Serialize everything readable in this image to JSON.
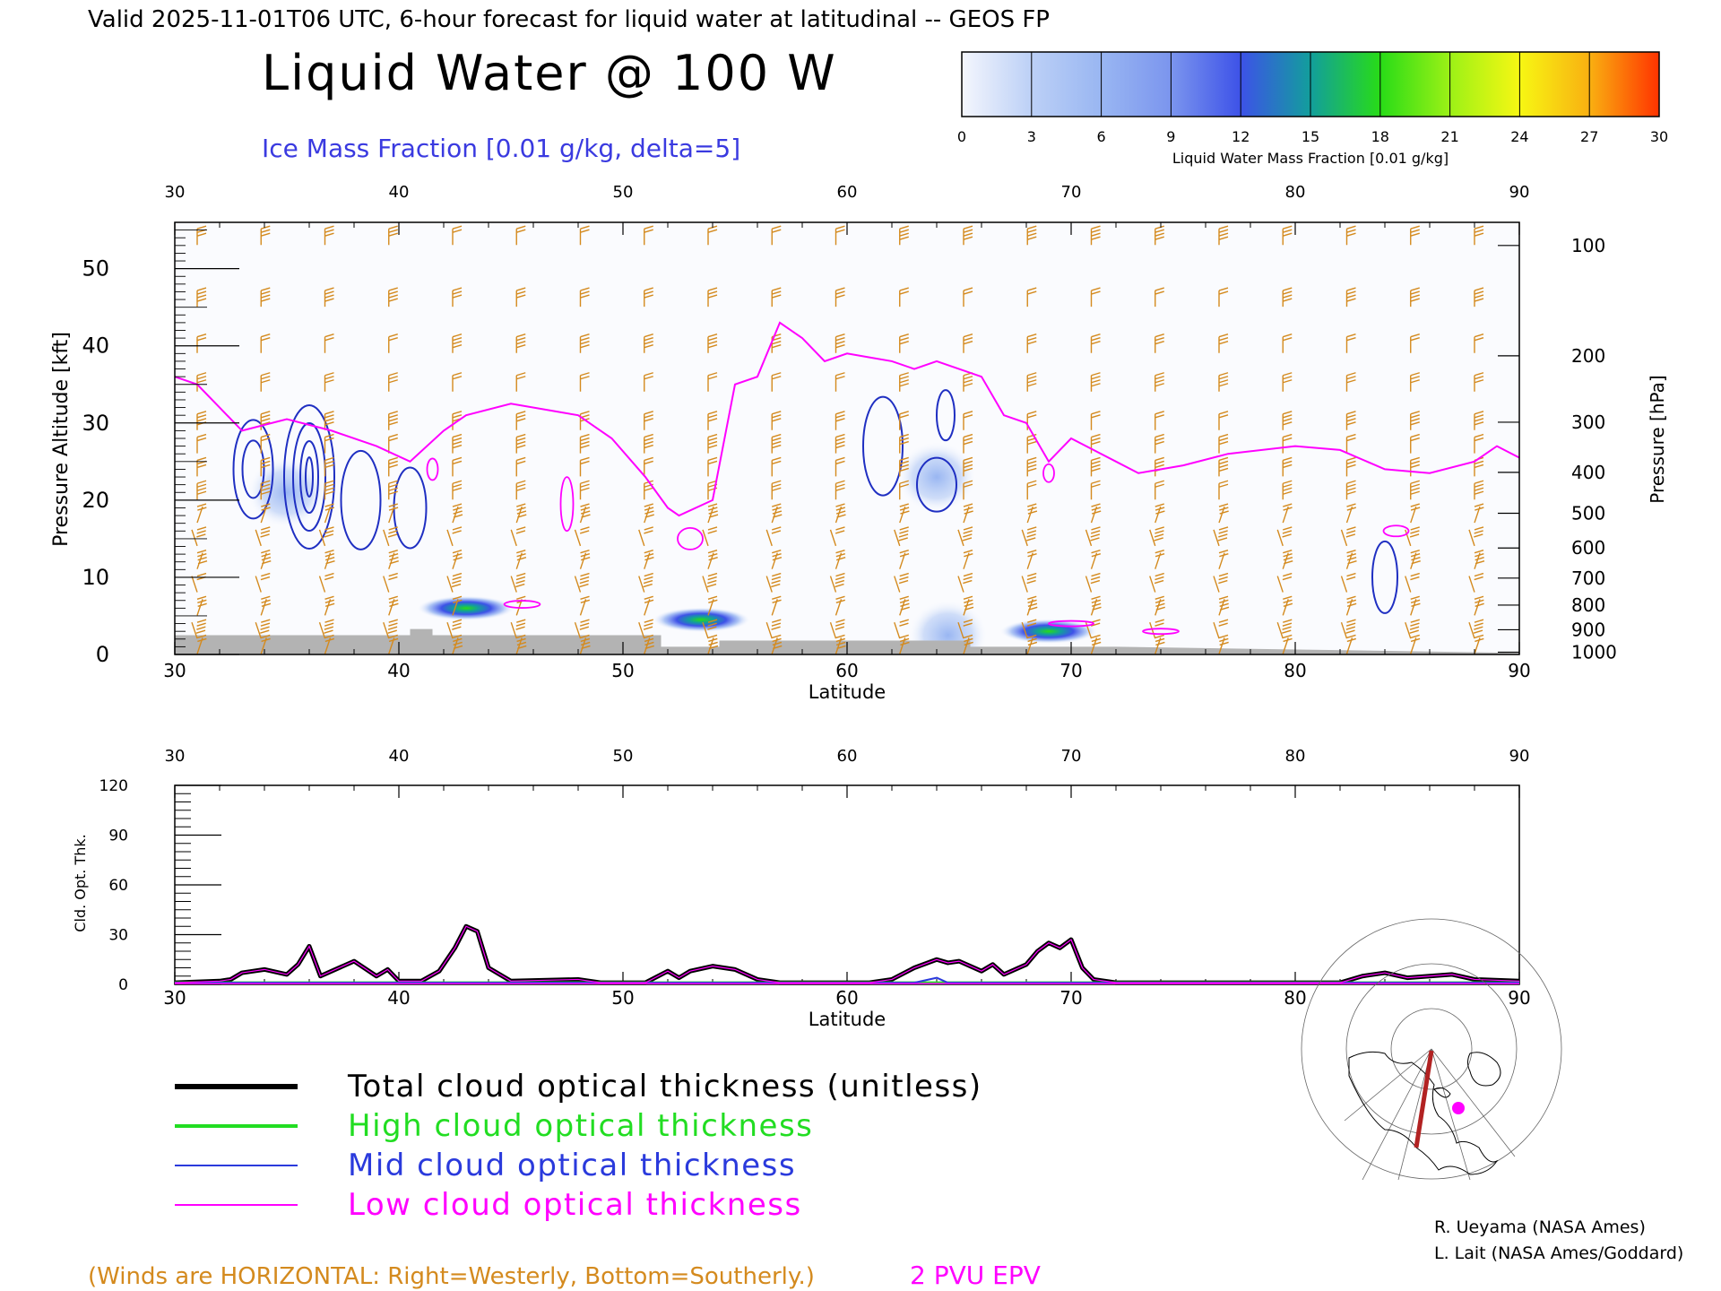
{
  "header": {
    "valid_line": "Valid 2025-11-01T06 UTC, 6-hour forecast for liquid water at latitudinal -- GEOS FP",
    "title": "Liquid Water @ 100 W",
    "subtitle": "Ice Mass Fraction [0.01 g/kg, delta=5]"
  },
  "colorbar": {
    "label": "Liquid Water Mass Fraction [0.01 g/kg]",
    "ticks": [
      "0",
      "3",
      "6",
      "9",
      "12",
      "15",
      "18",
      "21",
      "24",
      "27",
      "30"
    ],
    "colors": [
      "#f4f6fd",
      "#bcd0f6",
      "#99b6f2",
      "#7b95ee",
      "#3d52e8",
      "#129e9c",
      "#28dc17",
      "#9cf116",
      "#f7f713",
      "#f9b011",
      "#ff3300"
    ]
  },
  "colors": {
    "wind_barb": "#d48a1e",
    "epv": "#ff00ff",
    "ice_contour": "#1f2fc2",
    "terrain": "#b3b3b3"
  },
  "chart_data": [
    {
      "type": "heatmap",
      "name": "liquid-water-cross-section",
      "xlabel": "Latitude",
      "ylabel": "Pressure Altitude [kft]",
      "y2label": "Pressure [hPa]",
      "xlim": [
        30,
        90
      ],
      "ylim": [
        0,
        56
      ],
      "xticks": [
        "30",
        "40",
        "50",
        "60",
        "70",
        "80",
        "90"
      ],
      "yticks": [
        "0",
        "10",
        "20",
        "30",
        "40",
        "50"
      ],
      "pressure_ticks": [
        {
          "label": "100",
          "kft": 53
        },
        {
          "label": "200",
          "kft": 38.7
        },
        {
          "label": "300",
          "kft": 30.1
        },
        {
          "label": "400",
          "kft": 23.6
        },
        {
          "label": "500",
          "kft": 18.3
        },
        {
          "label": "600",
          "kft": 13.8
        },
        {
          "label": "700",
          "kft": 9.9
        },
        {
          "label": "800",
          "kft": 6.4
        },
        {
          "label": "900",
          "kft": 3.2
        },
        {
          "label": "1000",
          "kft": 0.3
        }
      ],
      "liquid_water_maxima": [
        {
          "lat": 43.0,
          "kft": 6.0,
          "value": 16
        },
        {
          "lat": 53.5,
          "kft": 4.5,
          "value": 14
        },
        {
          "lat": 69.0,
          "kft": 3.0,
          "value": 15
        },
        {
          "lat": 64.5,
          "kft": 2.5,
          "value": 9
        },
        {
          "lat": 35.0,
          "kft": 21.0,
          "value": 3
        },
        {
          "lat": 64.0,
          "kft": 23.0,
          "value": 3
        }
      ],
      "epv_2pvu_kft": [
        [
          30,
          36
        ],
        [
          31,
          35
        ],
        [
          32,
          32
        ],
        [
          33,
          29
        ],
        [
          35,
          30.5
        ],
        [
          37,
          29
        ],
        [
          39,
          27
        ],
        [
          40.5,
          25
        ],
        [
          42,
          29
        ],
        [
          43,
          31
        ],
        [
          45,
          32.5
        ],
        [
          47,
          31.5
        ],
        [
          48,
          31
        ],
        [
          49.5,
          28
        ],
        [
          51,
          23
        ],
        [
          52,
          19
        ],
        [
          52.5,
          18
        ],
        [
          54,
          20
        ],
        [
          55,
          35
        ],
        [
          56,
          36
        ],
        [
          57,
          43
        ],
        [
          58,
          41
        ],
        [
          59,
          38
        ],
        [
          60,
          39
        ],
        [
          61,
          38.5
        ],
        [
          62,
          38
        ],
        [
          63,
          37
        ],
        [
          64,
          38
        ],
        [
          65,
          37
        ],
        [
          66,
          36
        ],
        [
          67,
          31
        ],
        [
          68,
          30
        ],
        [
          69,
          25
        ],
        [
          70,
          28
        ],
        [
          72,
          25
        ],
        [
          73,
          23.5
        ],
        [
          75,
          24.5
        ],
        [
          77,
          26
        ],
        [
          80,
          27
        ],
        [
          82,
          26.5
        ],
        [
          84,
          24
        ],
        [
          86,
          23.5
        ],
        [
          88,
          25
        ],
        [
          89,
          27
        ],
        [
          90,
          25.5
        ]
      ],
      "terrain_kft": [
        [
          30,
          2.5
        ],
        [
          40.5,
          2.5
        ],
        [
          40.5,
          3.3
        ],
        [
          41.5,
          3.3
        ],
        [
          41.5,
          2.5
        ],
        [
          51.7,
          2.5
        ],
        [
          51.7,
          1.0
        ],
        [
          54.3,
          1.0
        ],
        [
          54.3,
          1.8
        ],
        [
          65.5,
          1.8
        ],
        [
          65.5,
          1.0
        ],
        [
          72,
          1.0
        ],
        [
          90,
          0.2
        ]
      ]
    },
    {
      "type": "line",
      "name": "cloud-optical-thickness",
      "xlabel": "Latitude",
      "ylabel": "Cld. Opt. Thk.",
      "xlim": [
        30,
        90
      ],
      "ylim": [
        0,
        120
      ],
      "xticks": [
        "30",
        "40",
        "50",
        "60",
        "70",
        "80",
        "90"
      ],
      "yticks": [
        "0",
        "30",
        "60",
        "90",
        "120"
      ],
      "series": [
        {
          "name": "Total cloud optical thickness (unitless)",
          "color": "#000000",
          "points": [
            [
              30,
              1
            ],
            [
              32,
              2
            ],
            [
              32.5,
              3
            ],
            [
              33,
              7
            ],
            [
              34,
              9
            ],
            [
              35,
              6
            ],
            [
              35.5,
              12
            ],
            [
              36,
              23
            ],
            [
              36.5,
              5
            ],
            [
              37,
              8
            ],
            [
              38,
              14
            ],
            [
              39,
              5
            ],
            [
              39.5,
              9
            ],
            [
              40,
              2
            ],
            [
              41,
              2
            ],
            [
              41.8,
              8
            ],
            [
              42.5,
              22
            ],
            [
              43,
              35
            ],
            [
              43.5,
              32
            ],
            [
              44,
              10
            ],
            [
              45,
              2
            ],
            [
              48,
              3
            ],
            [
              49,
              1
            ],
            [
              51,
              1
            ],
            [
              52,
              8
            ],
            [
              52.5,
              4
            ],
            [
              53,
              8
            ],
            [
              54,
              11
            ],
            [
              55,
              9
            ],
            [
              56,
              3
            ],
            [
              57,
              1
            ],
            [
              61,
              1
            ],
            [
              62,
              3
            ],
            [
              63,
              10
            ],
            [
              64,
              15
            ],
            [
              64.5,
              13
            ],
            [
              65,
              14
            ],
            [
              66,
              8
            ],
            [
              66.5,
              12
            ],
            [
              67,
              6
            ],
            [
              68,
              12
            ],
            [
              68.5,
              20
            ],
            [
              69,
              25
            ],
            [
              69.5,
              22
            ],
            [
              70,
              27
            ],
            [
              70.5,
              10
            ],
            [
              71,
              3
            ],
            [
              72,
              1
            ],
            [
              82,
              1
            ],
            [
              83,
              5
            ],
            [
              84,
              7
            ],
            [
              85,
              4
            ],
            [
              86,
              5
            ],
            [
              87,
              6
            ],
            [
              88,
              3
            ],
            [
              90,
              2
            ]
          ]
        },
        {
          "name": "High cloud optical thickness",
          "color": "#22dd22",
          "points": [
            [
              30,
              1
            ],
            [
              90,
              1
            ]
          ]
        },
        {
          "name": "Mid cloud optical thickness",
          "color": "#2a3adc",
          "points": [
            [
              30,
              1
            ],
            [
              63,
              1
            ],
            [
              64,
              4
            ],
            [
              64.5,
              1
            ],
            [
              90,
              1
            ]
          ]
        },
        {
          "name": "Low cloud optical thickness",
          "color": "#ff00ff",
          "points": [
            [
              30,
              0.5
            ],
            [
              90,
              0.5
            ]
          ]
        }
      ]
    }
  ],
  "legend": [
    {
      "label": "Total cloud optical thickness (unitless)",
      "color": "#000000"
    },
    {
      "label": "High cloud optical thickness",
      "color": "#22dd22"
    },
    {
      "label": "Mid cloud optical thickness",
      "color": "#2a3adc"
    },
    {
      "label": "Low cloud optical thickness",
      "color": "#ff00ff"
    }
  ],
  "footer": {
    "winds_note": "(Winds are HORIZONTAL: Right=Westerly, Bottom=Southerly.)",
    "epv_label": "2 PVU EPV",
    "credit1": "R. Ueyama (NASA Ames)",
    "credit2": "L. Lait (NASA Ames/Goddard)"
  }
}
